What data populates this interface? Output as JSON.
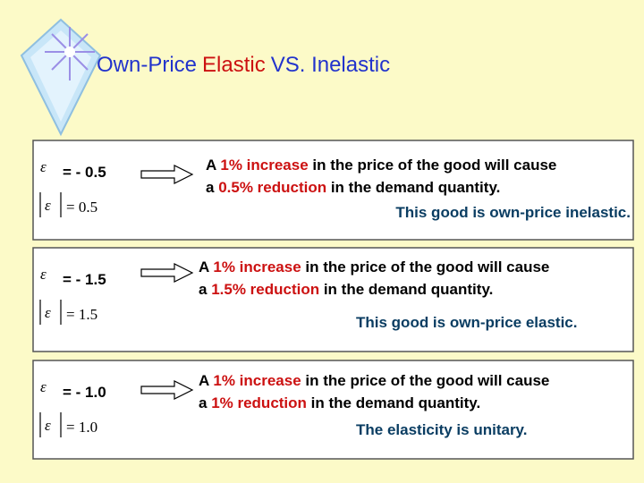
{
  "title": {
    "part1": "Own-Price",
    "part2": "Elastic",
    "part3": "VS. Inelastic"
  },
  "rows": [
    {
      "symbol": "ε",
      "equation": "= - 0.5",
      "abs_symbol": "ε",
      "abs_equation": "= 0.5",
      "line1": [
        "A ",
        "1% increase",
        " in the price of the good will cause"
      ],
      "line2": [
        "a ",
        "0.5% reduction",
        " in the demand quantity."
      ],
      "conclusion": "This good is own-price inelastic."
    },
    {
      "symbol": "ε",
      "equation": "= - 1.5",
      "abs_symbol": "ε",
      "abs_equation": "= 1.5",
      "line1": [
        "A ",
        "1% increase",
        " in the price of the good will cause"
      ],
      "line2": [
        "a ",
        "1.5% reduction",
        " in the demand quantity."
      ],
      "conclusion": "This good is own-price elastic."
    },
    {
      "symbol": "ε",
      "equation": "= - 1.0",
      "abs_symbol": "ε",
      "abs_equation": "= 1.0",
      "line1": [
        "A ",
        "1% increase",
        " in the price of the good will cause"
      ],
      "line2": [
        "a ",
        "1% reduction",
        " in the demand quantity."
      ],
      "conclusion": "The elasticity is unitary."
    }
  ]
}
